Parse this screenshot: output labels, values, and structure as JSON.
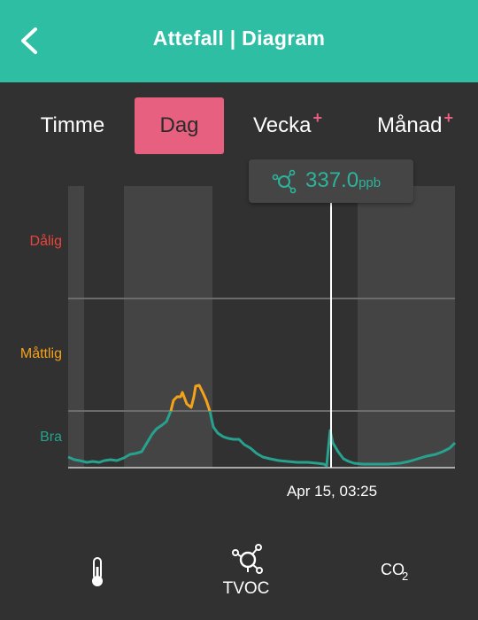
{
  "header": {
    "title": "Attefall | Diagram",
    "back_icon": "back-arrow-icon",
    "background_color": "#2dbea4"
  },
  "tabs": [
    {
      "label": "Timme",
      "active": false,
      "plus": false
    },
    {
      "label": "Dag",
      "active": true,
      "plus": false
    },
    {
      "label": "Vecka",
      "active": false,
      "plus": true
    },
    {
      "label": "Månad",
      "active": false,
      "plus": true
    }
  ],
  "tab_plus_symbol": "+",
  "tooltip": {
    "icon": "tvoc-molecule-icon",
    "value": "337.0",
    "unit": "ppb"
  },
  "chart_data": {
    "type": "line",
    "metric": "TVOC",
    "unit": "ppb",
    "level_labels": [
      {
        "label": "Dålig",
        "color": "#e8453c"
      },
      {
        "label": "Måttlig",
        "color": "#f5a21b"
      },
      {
        "label": "Bra",
        "color": "#26a28e"
      }
    ],
    "threshold_lines": [
      "Måttlig",
      "Bra"
    ],
    "series_colors": {
      "good": "#26a28e",
      "moderate": "#f5a21b"
    },
    "selected_point_label": "Apr 15, 03:25",
    "selected_point_value": 337.0,
    "band_pattern": "alternating vertical shading (time periods)",
    "grid": false
  },
  "bottom_nav": [
    {
      "label": "",
      "icon": "thermometer-icon"
    },
    {
      "label": "TVOC",
      "icon": "tvoc-molecule-icon"
    },
    {
      "label": "",
      "icon": "co2-icon",
      "icon_text": "CO2"
    }
  ]
}
